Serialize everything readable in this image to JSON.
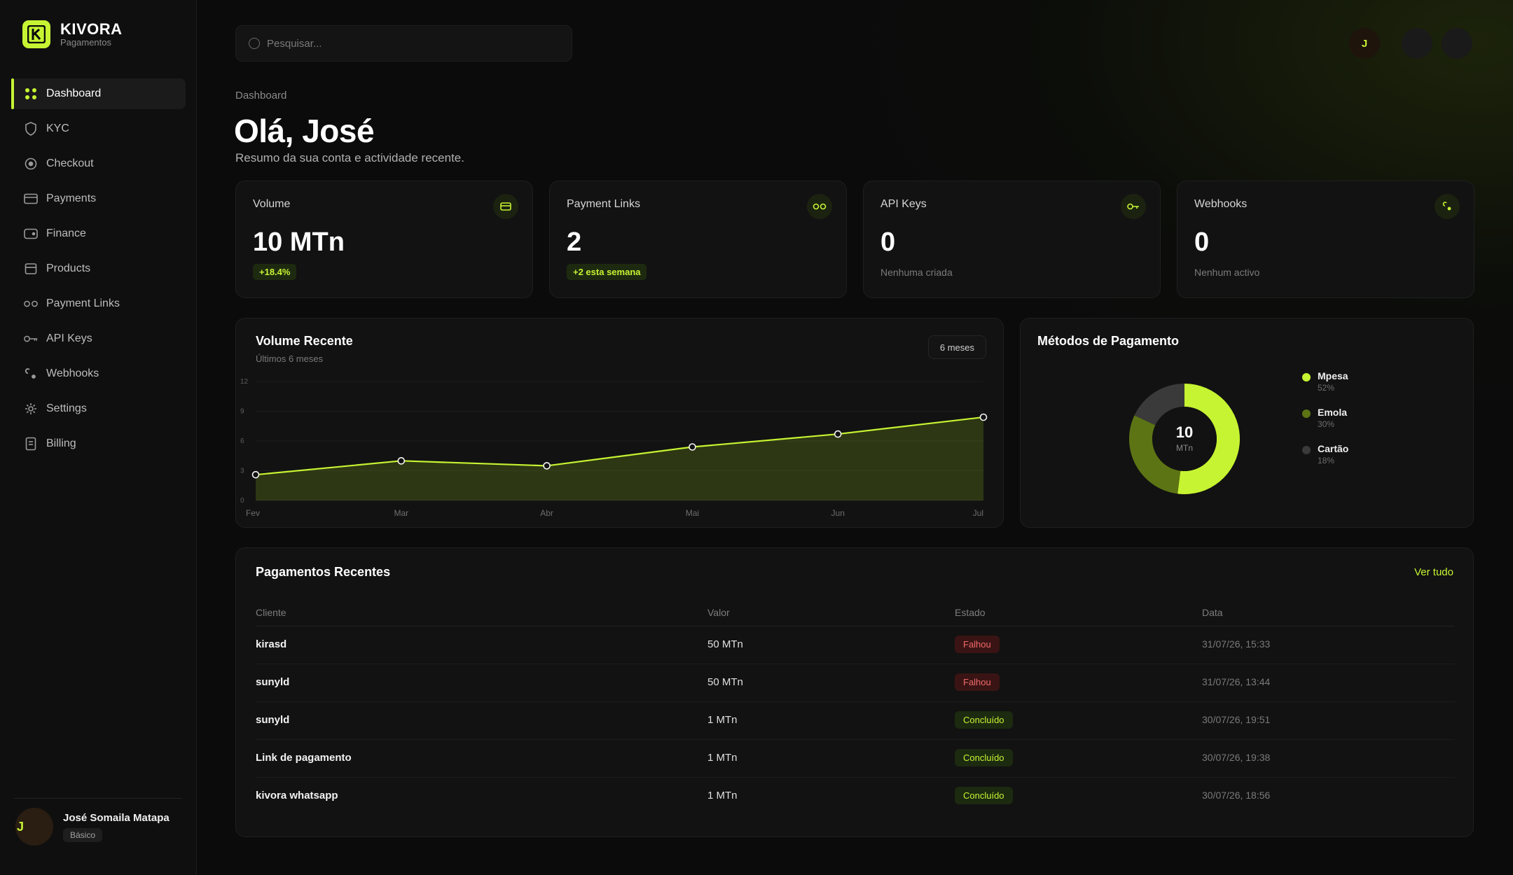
{
  "brand": {
    "name": "KIVORA",
    "subtitle": "Pagamentos",
    "accent": "#c6f432"
  },
  "sidebar": {
    "items": [
      {
        "label": "Dashboard",
        "icon": "dashboard-grid-icon",
        "active": true
      },
      {
        "label": "KYC",
        "icon": "shield-icon"
      },
      {
        "label": "Checkout",
        "icon": "checkout-circle-icon"
      },
      {
        "label": "Payments",
        "icon": "credit-card-icon"
      },
      {
        "label": "Finance",
        "icon": "wallet-icon"
      },
      {
        "label": "Products",
        "icon": "box-icon"
      },
      {
        "label": "Payment Links",
        "icon": "link-icon"
      },
      {
        "label": "API Keys",
        "icon": "key-icon"
      },
      {
        "label": "Webhooks",
        "icon": "webhook-icon"
      },
      {
        "label": "Settings",
        "icon": "gear-icon"
      },
      {
        "label": "Billing",
        "icon": "receipt-icon"
      }
    ],
    "user": {
      "initial": "J",
      "name": "José Somaila Matapa",
      "plan": "Básico"
    }
  },
  "topbar": {
    "search_placeholder": "Pesquisar...",
    "avatar_initial": "J"
  },
  "header": {
    "breadcrumb": "Dashboard",
    "title": "Olá, José",
    "subtitle": "Resumo da sua conta e actividade recente."
  },
  "stats": [
    {
      "label": "Volume",
      "value": "10 MTn",
      "badge": "+18.4%",
      "icon": "card-icon"
    },
    {
      "label": "Payment Links",
      "value": "2",
      "badge": "+2 esta semana",
      "icon": "link-icon"
    },
    {
      "label": "API Keys",
      "value": "0",
      "note": "Nenhuma criada",
      "icon": "key-icon"
    },
    {
      "label": "Webhooks",
      "value": "0",
      "note": "Nenhum activo",
      "icon": "webhook-icon"
    }
  ],
  "volume_chart": {
    "title": "Volume Recente",
    "subtitle": "Últimos 6 meses",
    "range_label": "6 meses",
    "chart_data": {
      "type": "area",
      "categories": [
        "Fev",
        "Mar",
        "Abr",
        "Mai",
        "Jun",
        "Jul"
      ],
      "values": [
        2.6,
        4.0,
        3.5,
        5.4,
        6.7,
        8.4
      ],
      "ylim": [
        0,
        12
      ],
      "yticks": [
        "0",
        "3",
        "6",
        "9",
        "12"
      ],
      "color": "#c6f432",
      "grid": true
    }
  },
  "payment_methods": {
    "title": "Métodos de Pagamento",
    "center_value": "10",
    "center_unit": "MTn",
    "chart_data": {
      "type": "pie",
      "categories": [
        "Mpesa",
        "Emola",
        "Cartão"
      ],
      "values": [
        52,
        30,
        18
      ],
      "labels": [
        "52%",
        "30%",
        "18%"
      ],
      "colors": [
        "#c6f432",
        "#5d7414",
        "#3a3a3a"
      ],
      "legend": "right"
    }
  },
  "payments": {
    "title": "Pagamentos Recentes",
    "see_all": "Ver tudo",
    "columns": [
      "Cliente",
      "Valor",
      "Estado",
      "Data"
    ],
    "rows": [
      {
        "client": "kirasd",
        "value": "50 MTn",
        "status": "Falhou",
        "status_type": "failed",
        "date": "31/07/26, 15:33"
      },
      {
        "client": "sunyld",
        "value": "50 MTn",
        "status": "Falhou",
        "status_type": "failed",
        "date": "31/07/26, 13:44"
      },
      {
        "client": "sunyld",
        "value": "1 MTn",
        "status": "Concluído",
        "status_type": "done",
        "date": "30/07/26, 19:51"
      },
      {
        "client": "Link de pagamento",
        "value": "1 MTn",
        "status": "Concluído",
        "status_type": "done",
        "date": "30/07/26, 19:38"
      },
      {
        "client": "kivora whatsapp",
        "value": "1 MTn",
        "status": "Concluído",
        "status_type": "done",
        "date": "30/07/26, 18:56"
      }
    ]
  }
}
